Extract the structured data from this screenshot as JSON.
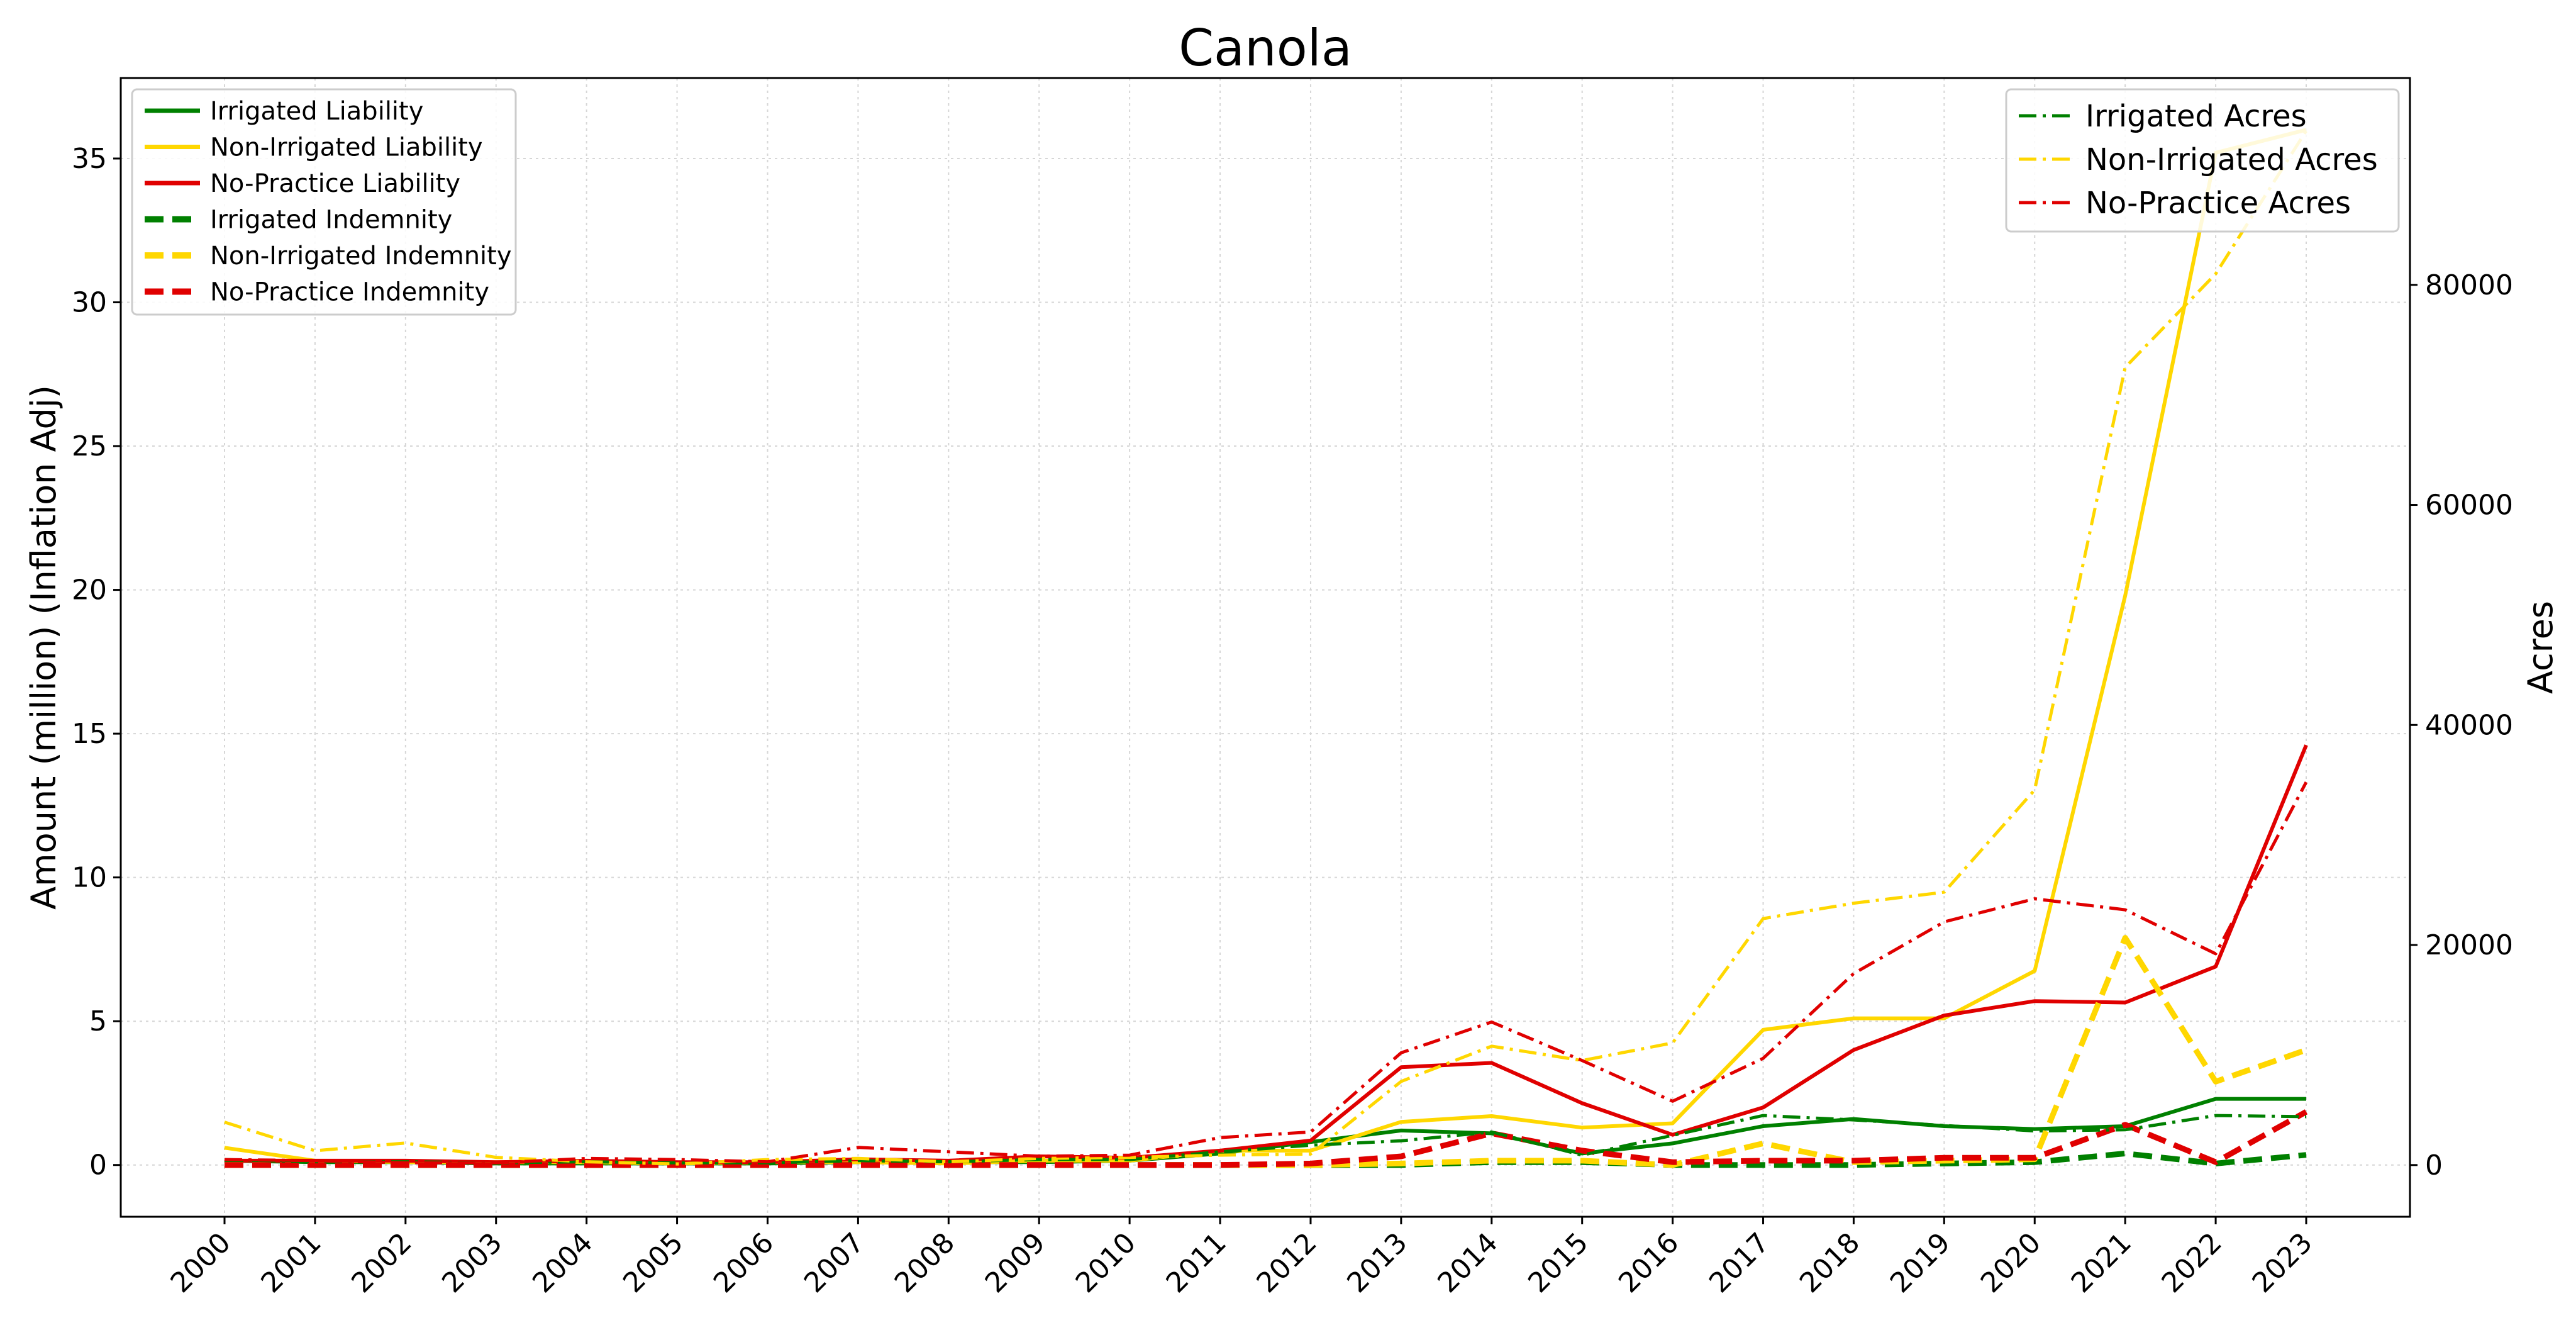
{
  "chart_data": {
    "type": "line",
    "title": "Canola",
    "xlabel": "",
    "ylabel": "Amount (million) (Inflation Adj)",
    "ylabel_right": "Acres",
    "x": [
      2000,
      2001,
      2002,
      2003,
      2004,
      2005,
      2006,
      2007,
      2008,
      2009,
      2010,
      2011,
      2012,
      2013,
      2014,
      2015,
      2016,
      2017,
      2018,
      2019,
      2020,
      2021,
      2022,
      2023
    ],
    "xtick_labels": [
      "2000",
      "2001",
      "2002",
      "2003",
      "2004",
      "2005",
      "2006",
      "2007",
      "2008",
      "2009",
      "2010",
      "2011",
      "2012",
      "2013",
      "2014",
      "2015",
      "2016",
      "2017",
      "2018",
      "2019",
      "2020",
      "2021",
      "2022",
      "2023"
    ],
    "ylim": [
      -1.8,
      37.8
    ],
    "yticks": [
      0,
      5,
      10,
      15,
      20,
      25,
      30,
      35
    ],
    "ytick_labels": [
      "0",
      "5",
      "10",
      "15",
      "20",
      "25",
      "30",
      "35"
    ],
    "ylim_right": [
      -4700,
      98800
    ],
    "yticks_right": [
      0,
      20000,
      40000,
      60000,
      80000
    ],
    "ytick_labels_right": [
      "0",
      "20000",
      "40000",
      "60000",
      "80000"
    ],
    "grid": true,
    "legend_left_placement": "upper-left",
    "legend_right_placement": "upper-right",
    "series": [
      {
        "name": "Irrigated Liability",
        "axis": "left",
        "style": "solid",
        "color": "#008000",
        "values": [
          0.15,
          0.1,
          0.1,
          0.05,
          0.05,
          0.05,
          0.05,
          0.1,
          0.1,
          0.1,
          0.15,
          0.4,
          0.8,
          1.2,
          1.1,
          0.4,
          0.75,
          1.35,
          1.6,
          1.35,
          1.25,
          1.35,
          2.3,
          2.3
        ]
      },
      {
        "name": "Non-Irrigated Liability",
        "axis": "left",
        "style": "solid",
        "color": "#FFD700",
        "values": [
          0.6,
          0.15,
          0.1,
          0.1,
          0.1,
          0.05,
          0.1,
          0.1,
          0.05,
          0.15,
          0.15,
          0.5,
          0.5,
          1.5,
          1.7,
          1.3,
          1.45,
          4.7,
          5.1,
          5.1,
          6.75,
          19.8,
          35.2,
          36.0
        ]
      },
      {
        "name": "No-Practice Liability",
        "axis": "left",
        "style": "solid",
        "color": "#E00000",
        "values": [
          0.15,
          0.15,
          0.15,
          0.1,
          0.15,
          0.1,
          0.1,
          0.2,
          0.15,
          0.3,
          0.25,
          0.5,
          0.85,
          3.4,
          3.55,
          2.15,
          1.05,
          2.0,
          4.0,
          5.2,
          5.7,
          5.65,
          6.9,
          14.6
        ]
      },
      {
        "name": "Irrigated Indemnity",
        "axis": "left",
        "style": "dashed",
        "color": "#008000",
        "values": [
          0.05,
          0.0,
          0.0,
          0.0,
          0.0,
          0.0,
          0.0,
          0.0,
          0.0,
          0.0,
          0.0,
          0.0,
          0.0,
          0.0,
          0.1,
          0.1,
          0.0,
          0.0,
          0.0,
          0.05,
          0.1,
          0.4,
          0.05,
          0.35
        ]
      },
      {
        "name": "Non-Irrigated Indemnity",
        "axis": "left",
        "style": "dashed",
        "color": "#FFD700",
        "values": [
          0.0,
          0.0,
          0.0,
          0.0,
          0.0,
          0.0,
          0.0,
          0.0,
          0.0,
          0.0,
          0.0,
          0.0,
          0.0,
          0.05,
          0.15,
          0.15,
          0.0,
          0.75,
          0.1,
          0.15,
          0.2,
          7.9,
          2.9,
          4.0
        ]
      },
      {
        "name": "No-Practice Indemnity",
        "axis": "left",
        "style": "dashed",
        "color": "#E00000",
        "values": [
          0.0,
          0.0,
          0.0,
          0.0,
          0.0,
          0.0,
          0.0,
          0.0,
          0.0,
          0.0,
          0.0,
          0.0,
          0.05,
          0.3,
          1.1,
          0.5,
          0.1,
          0.15,
          0.15,
          0.25,
          0.25,
          1.4,
          0.1,
          1.85
        ]
      },
      {
        "name": "Irrigated Acres",
        "axis": "right",
        "style": "dashdot",
        "color": "#008000",
        "values": [
          500,
          300,
          300,
          200,
          300,
          200,
          200,
          400,
          300,
          500,
          500,
          1200,
          1800,
          2200,
          3000,
          900,
          2700,
          4500,
          4100,
          3600,
          3100,
          3200,
          4500,
          4400
        ]
      },
      {
        "name": "Non-Irrigated Acres",
        "axis": "right",
        "style": "dashdot",
        "color": "#FFD700",
        "values": [
          3900,
          1300,
          2000,
          700,
          300,
          100,
          500,
          600,
          300,
          600,
          700,
          900,
          1000,
          7600,
          10800,
          9500,
          11100,
          22400,
          23800,
          24800,
          34100,
          72500,
          81000,
          94000
        ]
      },
      {
        "name": "No-Practice Acres",
        "axis": "right",
        "style": "dashdot",
        "color": "#E00000",
        "values": [
          500,
          400,
          200,
          200,
          600,
          500,
          300,
          1600,
          1200,
          800,
          900,
          2500,
          3000,
          10200,
          13000,
          9500,
          5800,
          9700,
          17400,
          22100,
          24200,
          23200,
          19200,
          34800
        ]
      }
    ]
  }
}
